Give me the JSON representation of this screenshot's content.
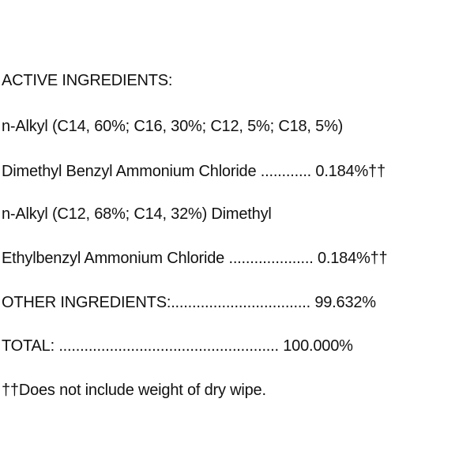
{
  "label": {
    "active_heading": "ACTIVE INGREDIENTS:",
    "ingredient1_line1": "n-Alkyl (C14, 60%; C16, 30%; C12, 5%; C18, 5%)",
    "ingredient1_line2": "Dimethyl Benzyl Ammonium Chloride ............ 0.184%††",
    "ingredient2_line1": "n-Alkyl (C12, 68%; C14, 32%) Dimethyl",
    "ingredient2_line2": "Ethylbenzyl Ammonium Chloride .................... 0.184%††",
    "other_ingredients": "OTHER INGREDIENTS:................................. 99.632%",
    "total": "TOTAL: .................................................... 100.000%",
    "footnote": "††Does not include weight of dry wipe."
  }
}
